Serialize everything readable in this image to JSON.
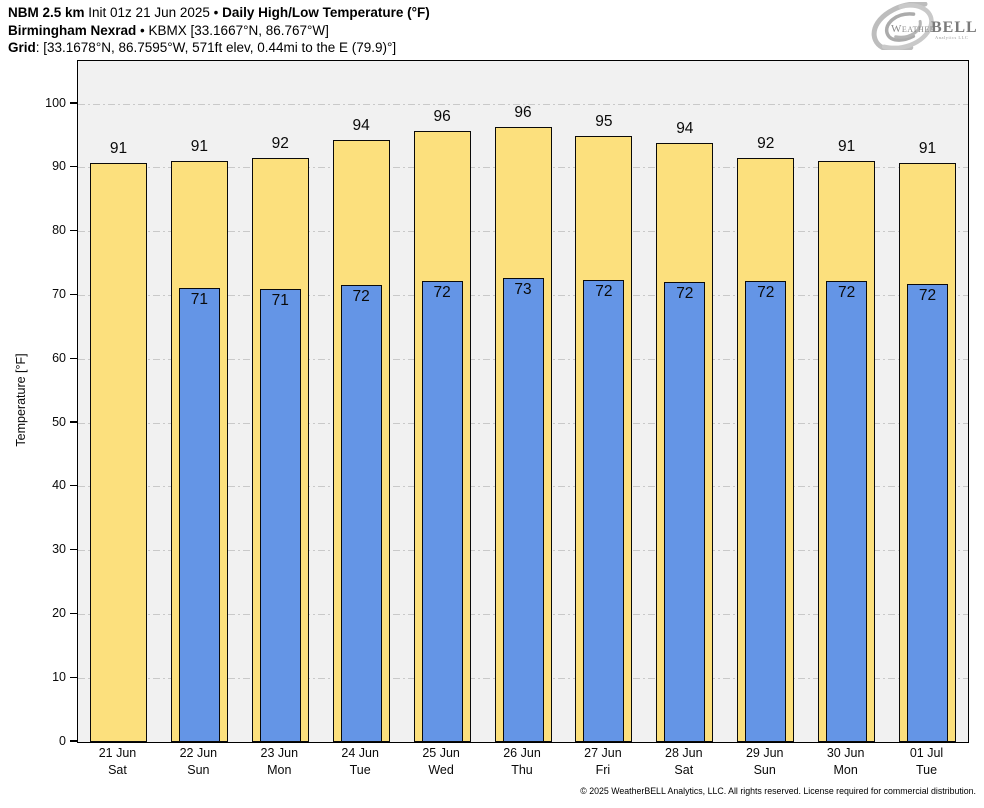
{
  "header": {
    "line1": {
      "model": "NBM 2.5 km",
      "init": " Init 01z 21 Jun 2025 • ",
      "title": "Daily High/Low Temperature (°F)"
    },
    "line2": {
      "station": "Birmingham Nexrad",
      "rest": " • KBMX [33.1667°N, 86.767°W]"
    },
    "line3": {
      "label": "Grid",
      "rest": ": [33.1678°N, 86.7595°W, 571ft elev, 0.44mi to the E (79.9)°]"
    }
  },
  "logo": {
    "weather": "Weather",
    "bell": "BELL",
    "sub": "Analytics LLC"
  },
  "footer": {
    "copyright": "© 2025 WeatherBELL Analytics, LLC. All rights reserved. License required for commercial distribution."
  },
  "chart_data": {
    "type": "bar",
    "title": "Daily High/Low Temperature (°F)",
    "xlabel": "",
    "ylabel": "Temperature [°F]",
    "ylim": [
      0,
      106.7
    ],
    "yticks": [
      0,
      10,
      20,
      30,
      40,
      50,
      60,
      70,
      80,
      90,
      100
    ],
    "grid": true,
    "legend_position": "none",
    "categories": [
      {
        "date": "21 Jun",
        "day": "Sat"
      },
      {
        "date": "22 Jun",
        "day": "Sun"
      },
      {
        "date": "23 Jun",
        "day": "Mon"
      },
      {
        "date": "24 Jun",
        "day": "Tue"
      },
      {
        "date": "25 Jun",
        "day": "Wed"
      },
      {
        "date": "26 Jun",
        "day": "Thu"
      },
      {
        "date": "27 Jun",
        "day": "Fri"
      },
      {
        "date": "28 Jun",
        "day": "Sat"
      },
      {
        "date": "29 Jun",
        "day": "Sun"
      },
      {
        "date": "30 Jun",
        "day": "Mon"
      },
      {
        "date": "01 Jul",
        "day": "Tue"
      }
    ],
    "series": [
      {
        "name": "Daily High",
        "color": "#FCE07D",
        "values": [
          91,
          91,
          92,
          94,
          96,
          96,
          95,
          94,
          92,
          91,
          91
        ],
        "values_exact": [
          90.7,
          91.0,
          91.6,
          94.3,
          95.8,
          96.4,
          95.0,
          93.9,
          91.6,
          91.1,
          90.7
        ]
      },
      {
        "name": "Daily Low",
        "color": "#6495E6",
        "values": [
          null,
          71,
          71,
          72,
          72,
          73,
          72,
          72,
          72,
          72,
          72
        ],
        "values_exact": [
          null,
          71.2,
          71.0,
          71.7,
          72.3,
          72.7,
          72.4,
          72.1,
          72.2,
          72.3,
          71.8
        ]
      }
    ],
    "colors": {
      "plot_bg": "#F1F1F1",
      "gridline": "#C9C9C9",
      "bar_border": "#0A0A0A",
      "high": "#FCE07D",
      "low": "#6495E6"
    }
  }
}
